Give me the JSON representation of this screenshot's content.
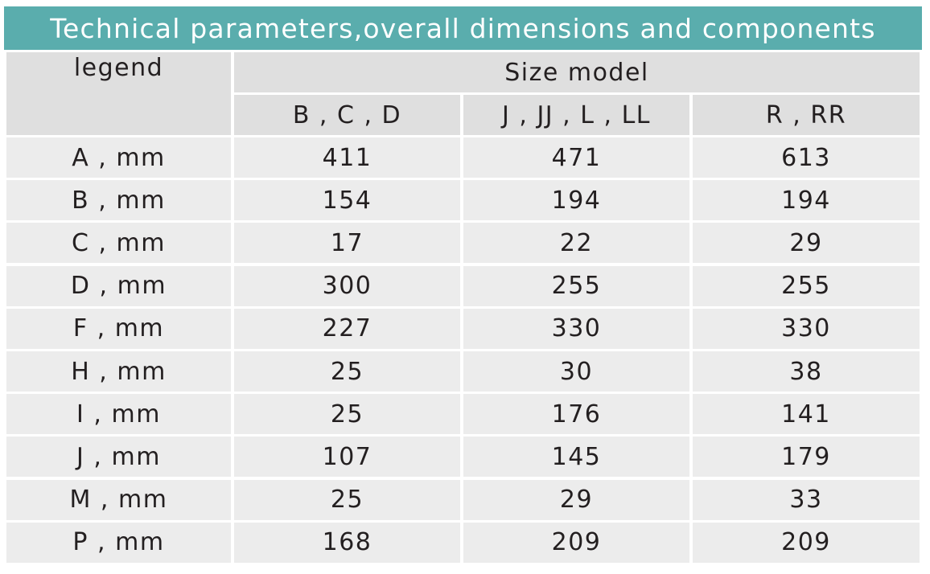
{
  "title": "Technical parameters,overall dimensions and components",
  "table": {
    "header": {
      "legend": "legend",
      "group": "Size model",
      "columns": [
        "B , C , D",
        "J , JJ , L , LL",
        "R , RR"
      ]
    },
    "rows": [
      {
        "label": "A , mm",
        "values": [
          411,
          471,
          613
        ]
      },
      {
        "label": "B , mm",
        "values": [
          154,
          194,
          194
        ]
      },
      {
        "label": "C , mm",
        "values": [
          17,
          22,
          29
        ]
      },
      {
        "label": "D , mm",
        "values": [
          300,
          255,
          255
        ]
      },
      {
        "label": "F , mm",
        "values": [
          227,
          330,
          330
        ]
      },
      {
        "label": "H , mm",
        "values": [
          25,
          30,
          38
        ]
      },
      {
        "label": "I , mm",
        "values": [
          25,
          176,
          141
        ]
      },
      {
        "label": "J , mm",
        "values": [
          107,
          145,
          179
        ]
      },
      {
        "label": "M , mm",
        "values": [
          25,
          29,
          33
        ]
      },
      {
        "label": "P , mm",
        "values": [
          168,
          209,
          209
        ]
      }
    ]
  }
}
